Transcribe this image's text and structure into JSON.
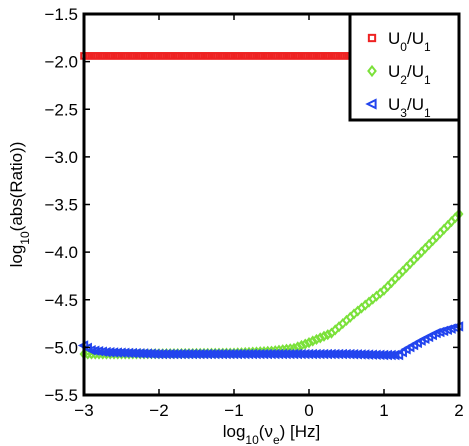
{
  "chart_data": {
    "type": "scatter",
    "title": "",
    "xlabel": {
      "base": "log",
      "sub": "10",
      "open": "(ν",
      "var_sub": "e",
      "close": ") [Hz]"
    },
    "ylabel": {
      "base": "log",
      "sub": "10",
      "rest": "(abs(Ratio))"
    },
    "xlim": [
      -3,
      2
    ],
    "ylim": [
      -5.5,
      -1.5
    ],
    "x_ticks": [
      -3,
      -2,
      -1,
      0,
      1,
      2
    ],
    "x_tick_labels": [
      "−3",
      "−2",
      "−1",
      "0",
      "1",
      "2"
    ],
    "y_ticks": [
      -1.5,
      -2,
      -2.5,
      -3,
      -3.5,
      -4,
      -4.5,
      -5,
      -5.5
    ],
    "y_tick_labels": [
      "−1.5",
      "−2.0",
      "−2.5",
      "−3.0",
      "−3.5",
      "−4.0",
      "−4.5",
      "−5.0",
      "−5.5"
    ],
    "grid": false,
    "legend_position": "top-right",
    "series": [
      {
        "name": "U0/U1",
        "label_parts": {
          "a": "U",
          "a_sub": "0",
          "mid": "/U",
          "b_sub": "1"
        },
        "marker": "square",
        "color": "#ee2222",
        "x_start": -3.0,
        "x_end": 1.9,
        "x_step": 0.05,
        "y_points": [
          [
            -3.0,
            -1.94
          ],
          [
            1.9,
            -1.94
          ]
        ]
      },
      {
        "name": "U2/U1",
        "label_parts": {
          "a": "U",
          "a_sub": "2",
          "mid": "/U",
          "b_sub": "1"
        },
        "marker": "diamond",
        "color": "#7be13a",
        "x_start": -3.0,
        "x_end": 2.0,
        "x_step": 0.05,
        "y_points": [
          [
            -3.0,
            -5.07
          ],
          [
            -2.5,
            -5.07
          ],
          [
            -1.0,
            -5.06
          ],
          [
            -0.5,
            -5.04
          ],
          [
            -0.2,
            -5.01
          ],
          [
            0.0,
            -4.95
          ],
          [
            0.3,
            -4.85
          ],
          [
            0.6,
            -4.65
          ],
          [
            1.0,
            -4.4
          ],
          [
            1.5,
            -4.0
          ],
          [
            2.0,
            -3.6
          ]
        ]
      },
      {
        "name": "U3/U1",
        "label_parts": {
          "a": "U",
          "a_sub": "3",
          "mid": "/U",
          "b_sub": "1"
        },
        "marker": "triangle-left",
        "color": "#2244ee",
        "x_start": -3.0,
        "x_end": 2.0,
        "x_step": 0.05,
        "y_points": [
          [
            -3.0,
            -4.98
          ],
          [
            -2.9,
            -5.03
          ],
          [
            -2.7,
            -5.05
          ],
          [
            -2.0,
            -5.07
          ],
          [
            0.0,
            -5.07
          ],
          [
            0.5,
            -5.07
          ],
          [
            1.0,
            -5.08
          ],
          [
            1.2,
            -5.08
          ],
          [
            1.3,
            -5.02
          ],
          [
            1.5,
            -4.93
          ],
          [
            1.7,
            -4.85
          ],
          [
            2.0,
            -4.78
          ]
        ]
      }
    ]
  }
}
